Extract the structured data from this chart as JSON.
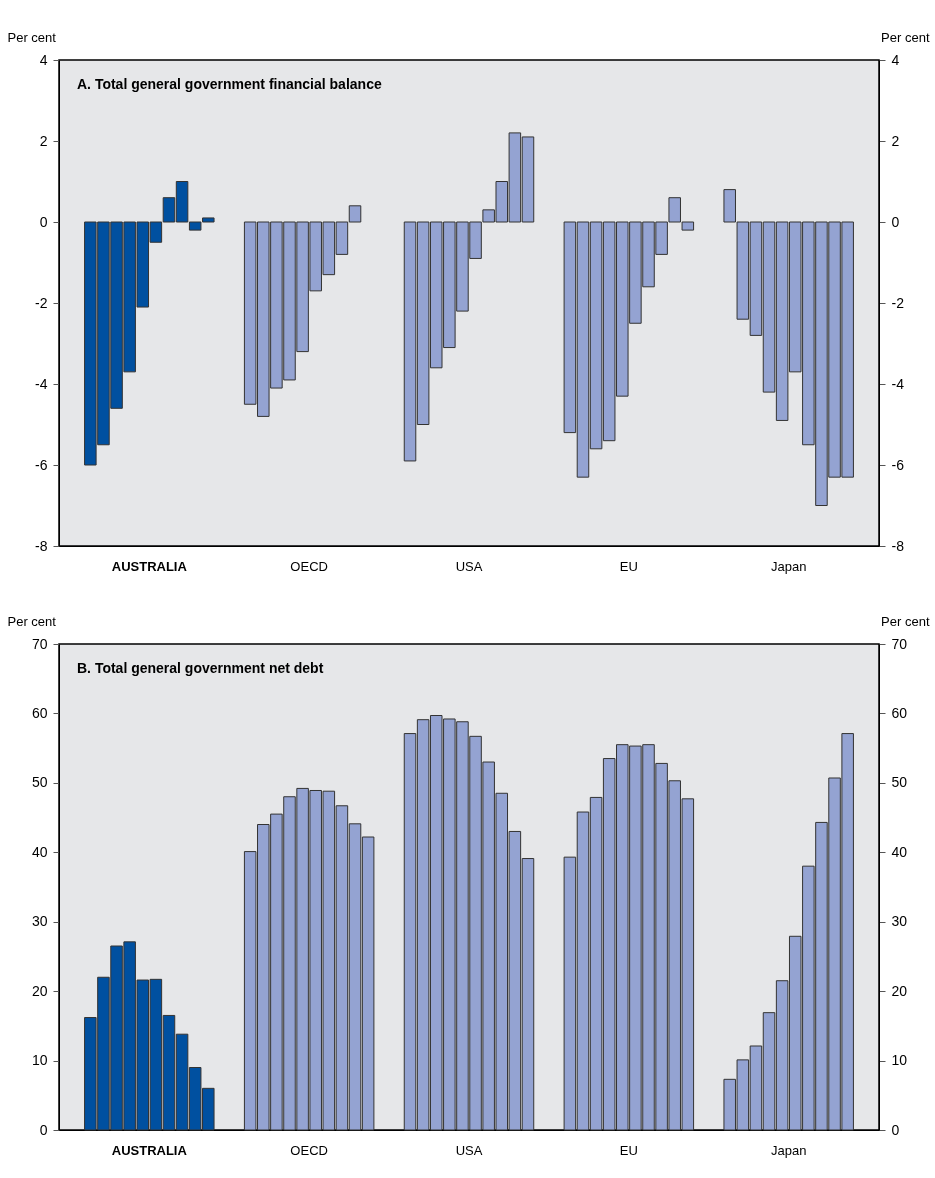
{
  "chart_data": [
    {
      "type": "bar",
      "title": "A.  Total general government financial balance",
      "ylabel": "Per cent",
      "y2label": "Per cent",
      "categories": [
        "AUSTRALIA",
        "OECD",
        "USA",
        "EU",
        "Japan"
      ],
      "series": [
        {
          "colors": [
            "#0050a0",
            "#94a3d2",
            "#94a3d2",
            "#94a3d2",
            "#94a3d2"
          ],
          "values": [
            -6.0,
            -4.5,
            -5.9,
            -5.2,
            0.8
          ]
        },
        {
          "colors": [
            "#0050a0",
            "#94a3d2",
            "#94a3d2",
            "#94a3d2",
            "#94a3d2"
          ],
          "values": [
            -5.5,
            -4.8,
            -5.0,
            -6.3,
            -2.4
          ]
        },
        {
          "colors": [
            "#0050a0",
            "#94a3d2",
            "#94a3d2",
            "#94a3d2",
            "#94a3d2"
          ],
          "values": [
            -4.6,
            -4.1,
            -3.6,
            -5.6,
            -2.8
          ]
        },
        {
          "colors": [
            "#0050a0",
            "#94a3d2",
            "#94a3d2",
            "#94a3d2",
            "#94a3d2"
          ],
          "values": [
            -3.7,
            -3.9,
            -3.1,
            -5.4,
            -4.2
          ]
        },
        {
          "colors": [
            "#0050a0",
            "#94a3d2",
            "#94a3d2",
            "#94a3d2",
            "#94a3d2"
          ],
          "values": [
            -2.1,
            -3.2,
            -2.2,
            -4.3,
            -4.9
          ]
        },
        {
          "colors": [
            "#0050a0",
            "#94a3d2",
            "#94a3d2",
            "#94a3d2",
            "#94a3d2"
          ],
          "values": [
            -0.5,
            -1.7,
            -0.9,
            -2.5,
            -3.7
          ]
        },
        {
          "colors": [
            "#0050a0",
            "#94a3d2",
            "#94a3d2",
            "#94a3d2",
            "#94a3d2"
          ],
          "values": [
            0.6,
            -1.3,
            0.3,
            -1.6,
            -5.5
          ]
        },
        {
          "colors": [
            "#0050a0",
            "#94a3d2",
            "#94a3d2",
            "#94a3d2",
            "#94a3d2"
          ],
          "values": [
            1.0,
            -0.8,
            1.0,
            -0.8,
            -7.0
          ]
        },
        {
          "colors": [
            "#0050a0",
            "#94a3d2",
            "#94a3d2",
            "#94a3d2",
            "#94a3d2"
          ],
          "values": [
            -0.2,
            0.4,
            2.2,
            0.6,
            -6.3
          ]
        },
        {
          "colors": [
            "#0050a0",
            null,
            "#94a3d2",
            "#94a3d2",
            "#94a3d2"
          ],
          "values": [
            0.1,
            null,
            2.1,
            -0.2,
            -6.3
          ]
        }
      ],
      "ylim": [
        -8,
        4
      ],
      "yticks": [
        -8,
        -6,
        -4,
        -2,
        0,
        2,
        4
      ],
      "y2lim": [
        -8,
        4
      ],
      "y2ticks": [
        -8,
        -6,
        -4,
        -2,
        0,
        2,
        4
      ]
    },
    {
      "type": "bar",
      "title": "B.  Total general government net debt",
      "ylabel": "Per cent",
      "y2label": "Per cent",
      "categories": [
        "AUSTRALIA",
        "OECD",
        "USA",
        "EU",
        "Japan"
      ],
      "series": [
        {
          "colors": [
            "#0050a0",
            "#94a3d2",
            "#94a3d2",
            "#94a3d2",
            "#94a3d2"
          ],
          "values": [
            16.2,
            40.1,
            57.1,
            39.3,
            7.3
          ]
        },
        {
          "colors": [
            "#0050a0",
            "#94a3d2",
            "#94a3d2",
            "#94a3d2",
            "#94a3d2"
          ],
          "values": [
            22.0,
            44.0,
            59.1,
            45.8,
            10.1
          ]
        },
        {
          "colors": [
            "#0050a0",
            "#94a3d2",
            "#94a3d2",
            "#94a3d2",
            "#94a3d2"
          ],
          "values": [
            26.5,
            45.5,
            59.7,
            47.9,
            12.1
          ]
        },
        {
          "colors": [
            "#0050a0",
            "#94a3d2",
            "#94a3d2",
            "#94a3d2",
            "#94a3d2"
          ],
          "values": [
            27.1,
            48.0,
            59.2,
            53.5,
            16.9
          ]
        },
        {
          "colors": [
            "#0050a0",
            "#94a3d2",
            "#94a3d2",
            "#94a3d2",
            "#94a3d2"
          ],
          "values": [
            21.6,
            49.2,
            58.8,
            55.5,
            21.5
          ]
        },
        {
          "colors": [
            "#0050a0",
            "#94a3d2",
            "#94a3d2",
            "#94a3d2",
            "#94a3d2"
          ],
          "values": [
            21.7,
            48.9,
            56.7,
            55.3,
            27.9
          ]
        },
        {
          "colors": [
            "#0050a0",
            "#94a3d2",
            "#94a3d2",
            "#94a3d2",
            "#94a3d2"
          ],
          "values": [
            16.5,
            48.8,
            53.0,
            55.5,
            38.0
          ]
        },
        {
          "colors": [
            "#0050a0",
            "#94a3d2",
            "#94a3d2",
            "#94a3d2",
            "#94a3d2"
          ],
          "values": [
            13.8,
            46.7,
            48.5,
            52.8,
            44.3
          ]
        },
        {
          "colors": [
            "#0050a0",
            "#94a3d2",
            "#94a3d2",
            "#94a3d2",
            "#94a3d2"
          ],
          "values": [
            9.0,
            44.1,
            43.0,
            50.3,
            50.7
          ]
        },
        {
          "colors": [
            "#0050a0",
            "#94a3d2",
            "#94a3d2",
            "#94a3d2",
            "#94a3d2"
          ],
          "values": [
            6.0,
            42.2,
            39.1,
            47.7,
            57.1
          ]
        }
      ],
      "ylim": [
        0,
        70
      ],
      "yticks": [
        0,
        10,
        20,
        30,
        40,
        50,
        60,
        70
      ],
      "y2lim": [
        0,
        70
      ],
      "y2ticks": [
        0,
        10,
        20,
        30,
        40,
        50,
        60,
        70
      ]
    }
  ]
}
